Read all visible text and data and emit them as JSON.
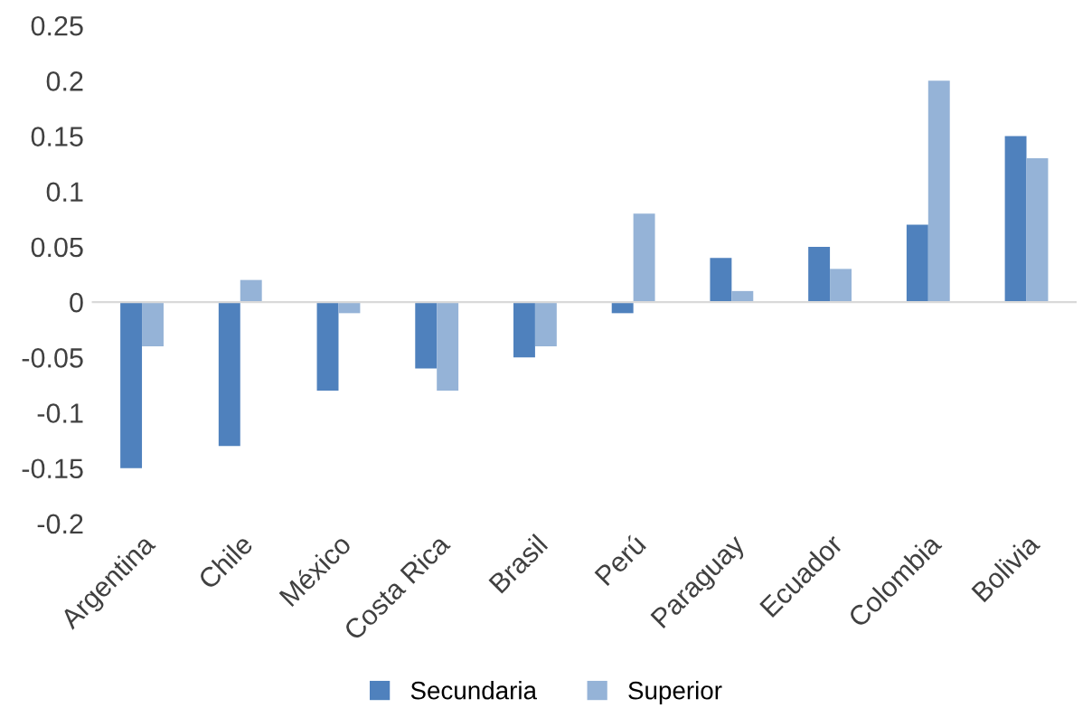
{
  "chart_data": {
    "type": "bar",
    "categories": [
      "Argentina",
      "Chile",
      "México",
      "Costa Rica",
      "Brasil",
      "Perú",
      "Paraguay",
      "Ecuador",
      "Colombia",
      "Bolivia"
    ],
    "series": [
      {
        "name": "Secundaria",
        "color": "#4f81bd",
        "values": [
          -0.15,
          -0.13,
          -0.08,
          -0.06,
          -0.05,
          -0.01,
          0.04,
          0.05,
          0.07,
          0.15
        ]
      },
      {
        "name": "Superior",
        "color": "#95b3d7",
        "values": [
          -0.04,
          0.02,
          -0.01,
          -0.08,
          -0.04,
          0.08,
          0.01,
          0.03,
          0.2,
          0.13
        ]
      }
    ],
    "ylim": [
      -0.2,
      0.25
    ],
    "yticks": [
      -0.2,
      -0.15,
      -0.1,
      -0.05,
      0,
      0.05,
      0.1,
      0.15,
      0.2,
      0.25
    ],
    "legend": "bottom"
  }
}
